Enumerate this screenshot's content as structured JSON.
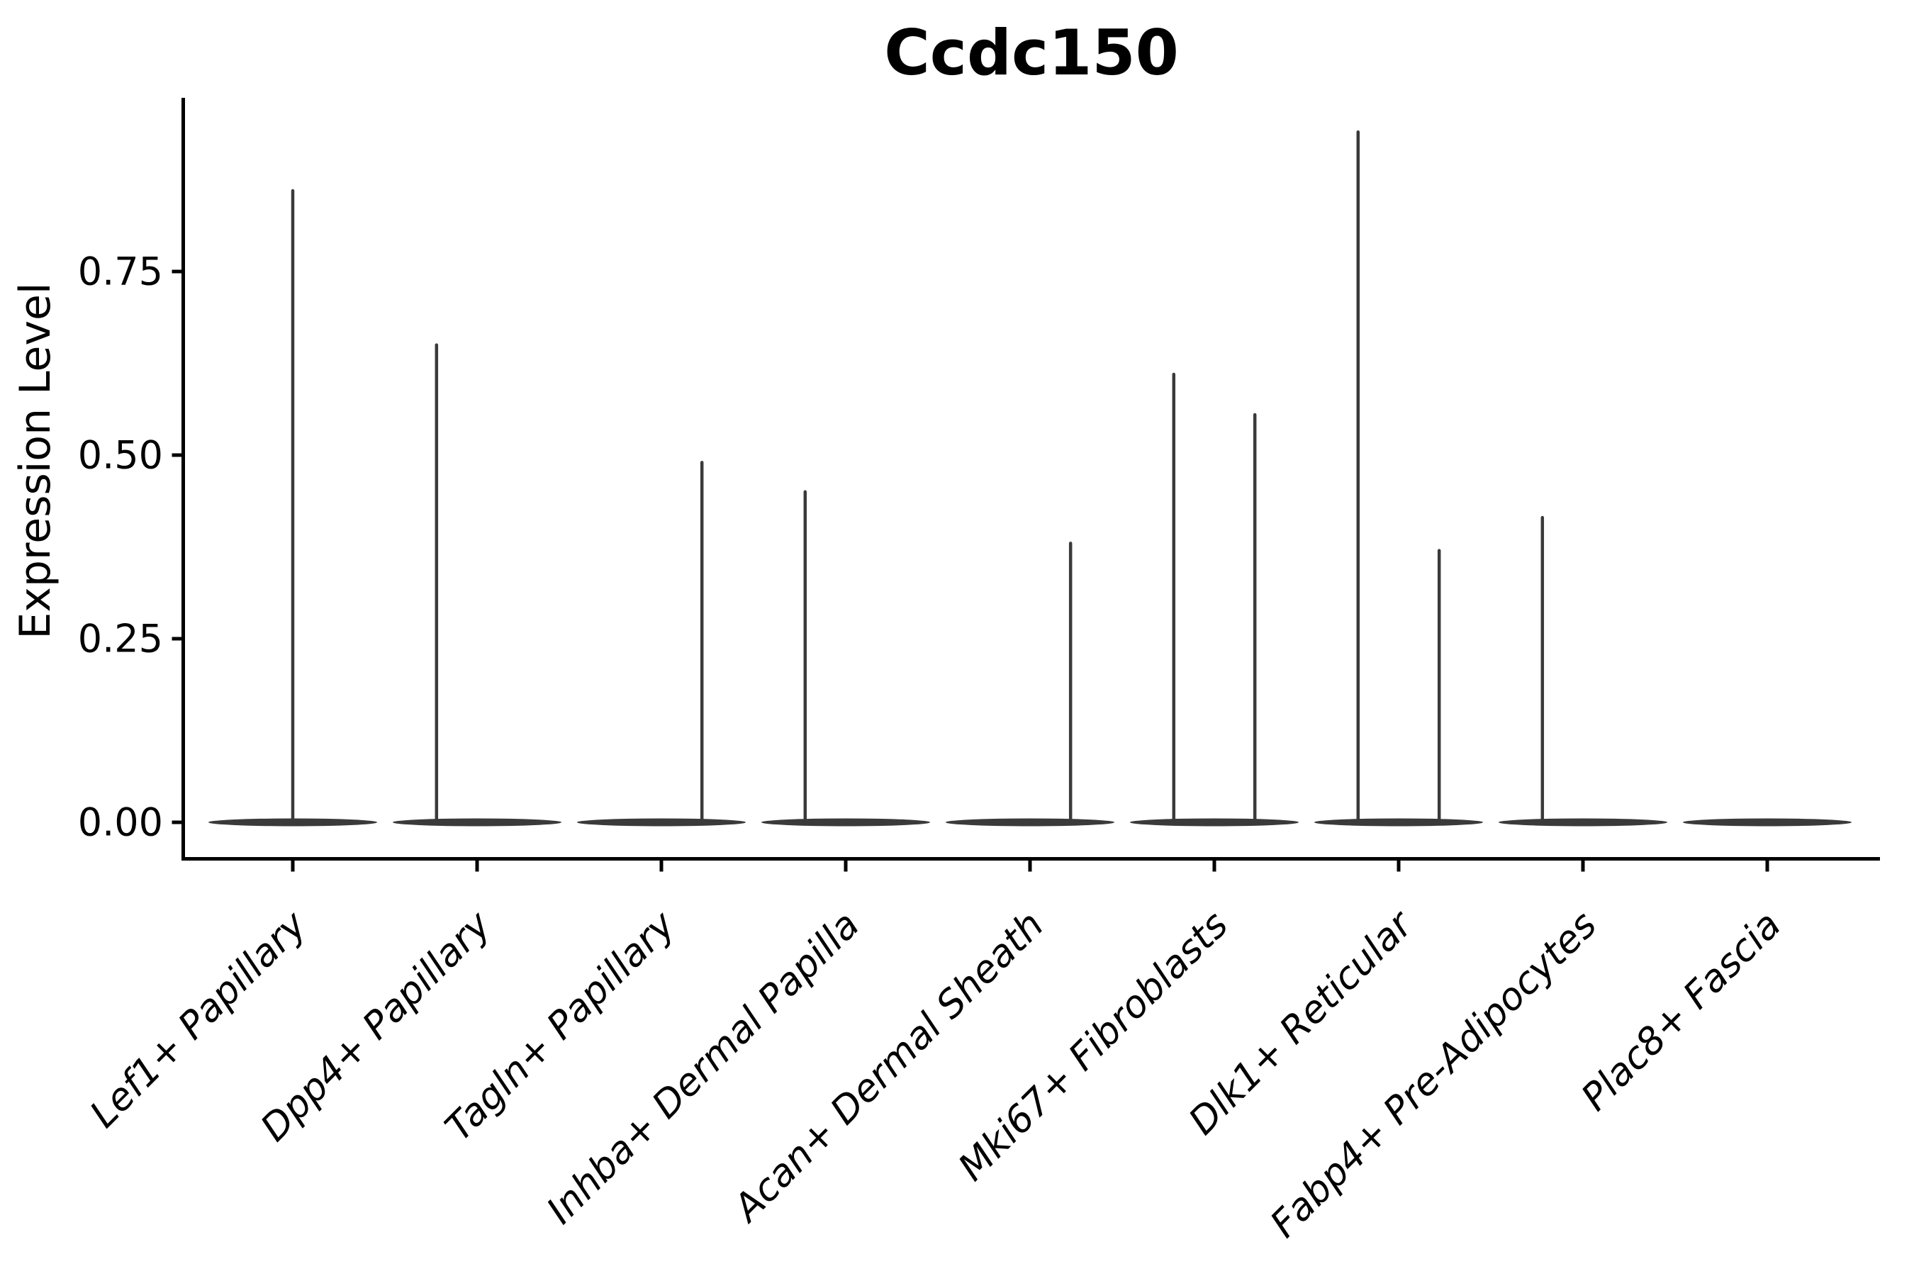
{
  "figure": {
    "title": "Ccdc150",
    "background": "#ffffff"
  },
  "chart_data": {
    "type": "violin",
    "title": "Ccdc150",
    "xlabel": "",
    "ylabel": "Expression Level",
    "y_ticks": [
      "0.00",
      "0.25",
      "0.50",
      "0.75"
    ],
    "y_tick_values": [
      0.0,
      0.25,
      0.5,
      0.75
    ],
    "ylim": [
      -0.05,
      0.985
    ],
    "grid": false,
    "legend": "none",
    "x_label_rotation_deg": 45,
    "categories": [
      "Lef1+ Papillary",
      "Dpp4+ Papillary",
      "Tagln+ Papillary",
      "Inhba+ Dermal Papilla",
      "Acan+ Dermal Sheath",
      "Mki67+ Fibroblasts",
      "Dlk1+ Reticular",
      "Fabp4+ Pre-Adipocytes",
      "Plac8+ Fascia"
    ],
    "violins": [
      {
        "category": "Lef1+ Papillary",
        "zero_density_bulk": true,
        "needles": [
          {
            "offset": 0.0,
            "max": 0.86
          }
        ]
      },
      {
        "category": "Dpp4+ Papillary",
        "zero_density_bulk": true,
        "needles": [
          {
            "offset": -0.22,
            "max": 0.65
          }
        ]
      },
      {
        "category": "Tagln+ Papillary",
        "zero_density_bulk": true,
        "needles": [
          {
            "offset": 0.22,
            "max": 0.49
          }
        ]
      },
      {
        "category": "Inhba+ Dermal Papilla",
        "zero_density_bulk": true,
        "needles": [
          {
            "offset": -0.22,
            "max": 0.45
          }
        ]
      },
      {
        "category": "Acan+ Dermal Sheath",
        "zero_density_bulk": true,
        "needles": [
          {
            "offset": 0.22,
            "max": 0.38
          }
        ]
      },
      {
        "category": "Mki67+ Fibroblasts",
        "zero_density_bulk": true,
        "needles": [
          {
            "offset": -0.22,
            "max": 0.61
          },
          {
            "offset": 0.22,
            "max": 0.555
          }
        ]
      },
      {
        "category": "Dlk1+ Reticular",
        "zero_density_bulk": true,
        "needles": [
          {
            "offset": -0.22,
            "max": 0.94
          },
          {
            "offset": 0.22,
            "max": 0.37
          }
        ]
      },
      {
        "category": "Fabp4+ Pre-Adipocytes",
        "zero_density_bulk": true,
        "needles": [
          {
            "offset": -0.22,
            "max": 0.415
          }
        ]
      },
      {
        "category": "Plac8+ Fascia",
        "zero_density_bulk": true,
        "needles": []
      }
    ],
    "colors": {
      "violin": "#3a3a3a",
      "needle": "#3a3a3a",
      "axis": "#000000",
      "text": "#000000",
      "background": "#ffffff"
    }
  }
}
